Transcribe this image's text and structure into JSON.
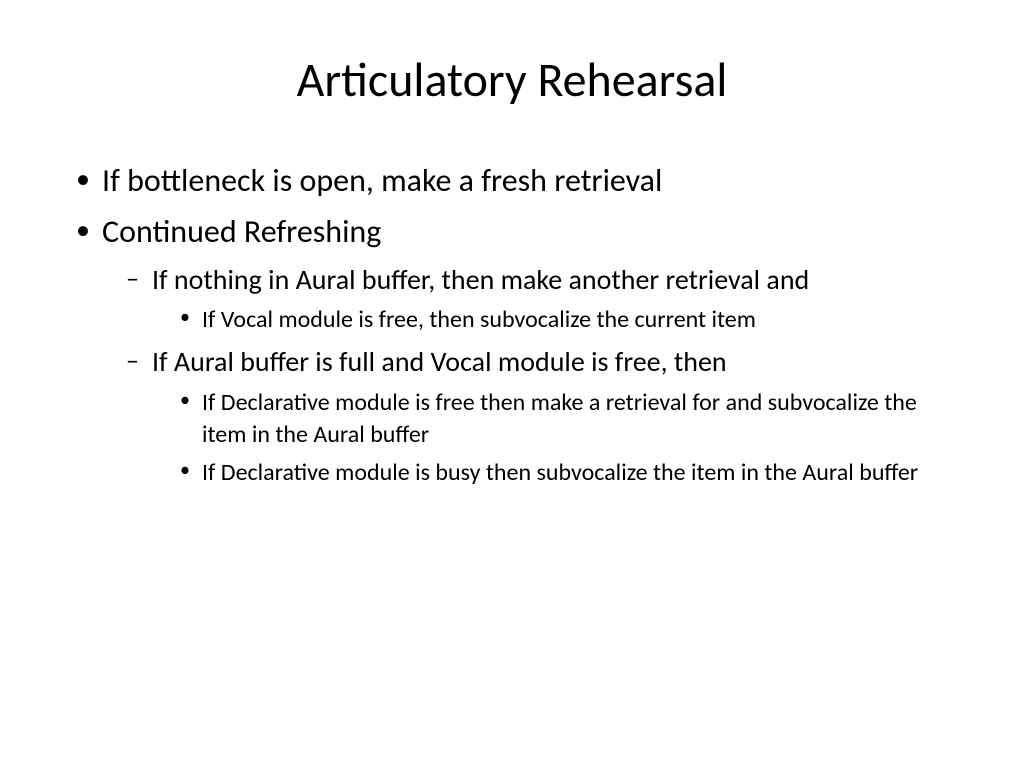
{
  "slide": {
    "title": "Articulatory Rehearsal",
    "bullets": {
      "b1": "If bottleneck is open, make a fresh retrieval",
      "b2": "Continued Refreshing",
      "b2_1": "If nothing in Aural buffer, then make another retrieval and",
      "b2_1_1": "If Vocal module is free, then subvocalize the current item",
      "b2_2": "If Aural buffer is full and Vocal module is free, then",
      "b2_2_1": "If Declarative module is free then make a retrieval for and subvocalize the item in the Aural buffer",
      "b2_2_2": "If Declarative module is busy then subvocalize the item in the Aural buffer"
    }
  },
  "style": {
    "background_color": "#ffffff",
    "text_color": "#000000",
    "title_fontsize": 48,
    "level1_fontsize": 32,
    "level2_fontsize": 28,
    "level3_fontsize": 24,
    "font_family": "Calibri"
  }
}
